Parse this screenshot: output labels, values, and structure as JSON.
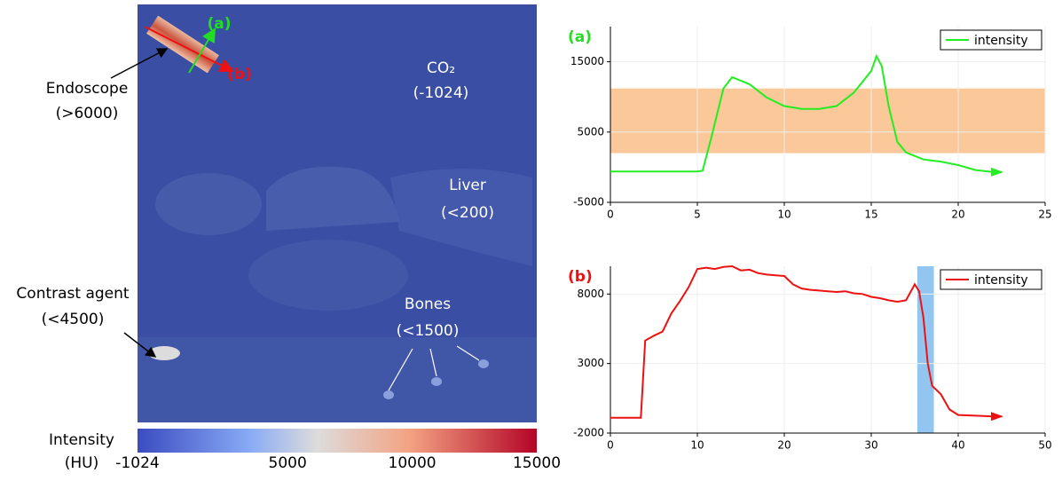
{
  "chart_data": [
    {
      "type": "line",
      "title": "(a)",
      "title_color": "#22dd22",
      "x": [
        0,
        1,
        2,
        3,
        4,
        5,
        5.3,
        5.8,
        6.5,
        7,
        8,
        9,
        10,
        11,
        12,
        13,
        14,
        15,
        15.3,
        15.6,
        16,
        16.5,
        17,
        18,
        19,
        20,
        21,
        22,
        22.5
      ],
      "series": [
        {
          "name": "intensity",
          "color": "#22ee22",
          "values": [
            -600,
            -600,
            -600,
            -600,
            -600,
            -600,
            -500,
            4200,
            11200,
            12800,
            11800,
            9900,
            8700,
            8300,
            8300,
            8700,
            10600,
            13700,
            15800,
            14400,
            8700,
            3600,
            2100,
            1100,
            800,
            300,
            -400,
            -700,
            -700
          ]
        }
      ],
      "bands": [
        {
          "axis": "y",
          "range": [
            2000,
            11200
          ],
          "color": "#fbc89a"
        }
      ],
      "xlim": [
        0,
        25
      ],
      "xticks": [
        0,
        5,
        10,
        15,
        20,
        25
      ],
      "ylim": [
        -5000,
        20000
      ],
      "yticks": [
        -5000,
        5000,
        15000
      ],
      "grid": true,
      "legend": "upper right"
    },
    {
      "type": "line",
      "title": "(b)",
      "title_color": "#ee1111",
      "x": [
        0,
        1,
        2,
        3,
        3.5,
        4,
        5,
        6,
        7,
        8,
        9,
        10,
        11,
        12,
        13,
        14,
        15,
        16,
        17,
        18,
        19,
        20,
        21,
        22,
        23,
        24,
        25,
        26,
        27,
        28,
        29,
        30,
        31,
        32,
        33,
        34,
        35,
        35.5,
        36,
        36.5,
        37,
        38,
        39,
        40,
        42,
        44,
        45
      ],
      "series": [
        {
          "name": "intensity",
          "color": "#ee1111",
          "values": [
            -900,
            -900,
            -900,
            -900,
            -900,
            4650,
            5000,
            5300,
            6600,
            7500,
            8500,
            9800,
            9900,
            9800,
            9950,
            10000,
            9700,
            9750,
            9500,
            9400,
            9350,
            9300,
            8700,
            8400,
            8300,
            8250,
            8200,
            8150,
            8200,
            8050,
            8000,
            7800,
            7700,
            7550,
            7450,
            7550,
            8700,
            8200,
            6300,
            3000,
            1400,
            800,
            -300,
            -700,
            -750,
            -800,
            -800
          ]
        }
      ],
      "bands": [
        {
          "axis": "x",
          "range": [
            35.3,
            37.2
          ],
          "color": "#7fbcee"
        }
      ],
      "xlim": [
        0,
        50
      ],
      "xticks": [
        0,
        10,
        20,
        30,
        40,
        50
      ],
      "ylim": [
        -2000,
        10000
      ],
      "yticks": [
        -2000,
        3000,
        8000
      ],
      "grid": true,
      "legend": "upper right"
    }
  ],
  "image": {
    "marker_a": "(a)",
    "marker_b": "(b)",
    "endoscope": [
      "Endoscope",
      "(>6000)"
    ],
    "co2": [
      "CO₂",
      "(-1024)"
    ],
    "liver": [
      "Liver",
      "(<200)"
    ],
    "contrast": [
      "Contrast agent",
      "(<4500)"
    ],
    "bones": [
      "Bones",
      "(<1500)"
    ]
  },
  "colorbar": {
    "label": [
      "Intensity",
      "(HU)"
    ],
    "range": [
      -1024,
      15000
    ],
    "ticks": [
      -1024,
      5000,
      10000,
      15000
    ]
  }
}
